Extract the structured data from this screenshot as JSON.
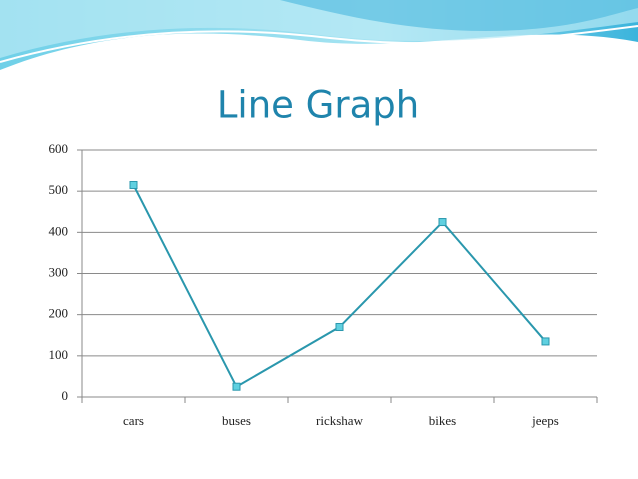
{
  "chart_data": {
    "type": "line",
    "title": "Line Graph",
    "categories": [
      "cars",
      "buses",
      "rickshaw",
      "bikes",
      "jeeps"
    ],
    "values": [
      515,
      25,
      170,
      425,
      135
    ],
    "color": "#2a97ad",
    "marker_color": "#5fd0e0",
    "ylim": [
      0,
      600
    ],
    "yticks": [
      0,
      100,
      200,
      300,
      400,
      500,
      600
    ],
    "grid": true
  }
}
